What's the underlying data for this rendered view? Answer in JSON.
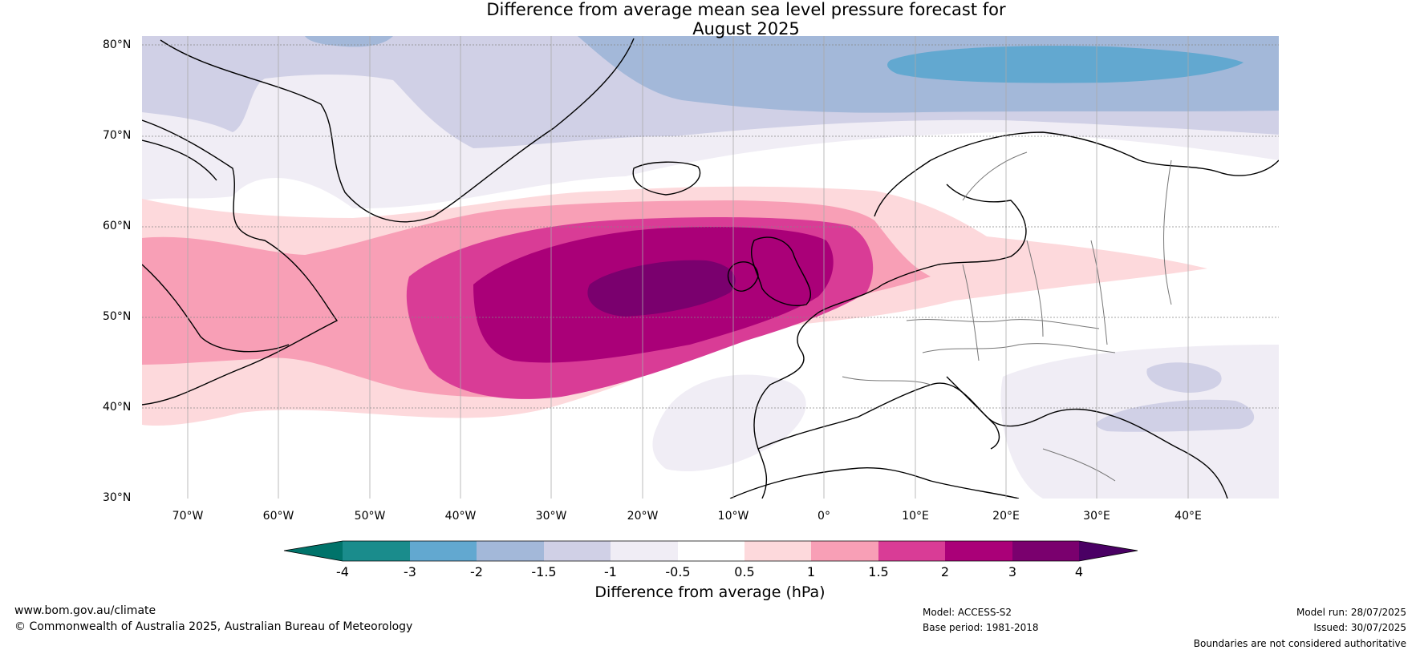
{
  "title": {
    "line1": "Difference from average mean sea level pressure forecast for",
    "line2": "August 2025"
  },
  "axes": {
    "lat_labels": [
      "80°N",
      "70°N",
      "60°N",
      "50°N",
      "40°N",
      "30°N"
    ],
    "lon_labels": [
      "70°W",
      "60°W",
      "50°W",
      "40°W",
      "30°W",
      "20°W",
      "10°W",
      "0°",
      "10°E",
      "20°E",
      "30°E",
      "40°E"
    ]
  },
  "colorbar": {
    "ticks": [
      "-4",
      "-3",
      "-2",
      "-1.5",
      "-1",
      "-0.5",
      "0.5",
      "1",
      "1.5",
      "2",
      "3",
      "4"
    ],
    "colors": [
      "#1a8c8c",
      "#62a8d0",
      "#a3b8d9",
      "#d0d0e6",
      "#f0edf5",
      "#ffffff",
      "#fdd9dc",
      "#f89fb6",
      "#d93c96",
      "#aa0078",
      "#7a006e"
    ],
    "under_color": "#00736a",
    "over_color": "#4a0064",
    "label": "Difference from average (hPa)"
  },
  "footer": {
    "website": "www.bom.gov.au/climate",
    "copyright": "© Commonwealth of Australia 2025, Australian Bureau of Meteorology",
    "model": "Model: ACCESS-S2",
    "base_period": "Base period: 1981-2018",
    "model_run": "Model run: 28/07/2025",
    "issued": "Issued: 30/07/2025",
    "disclaimer": "Boundaries are not considered authoritative"
  }
}
